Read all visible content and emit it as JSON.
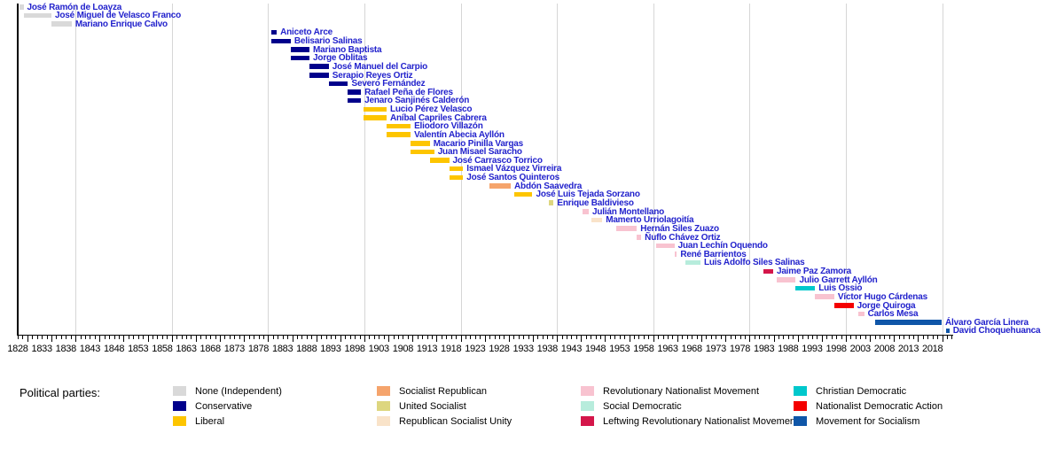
{
  "legend": {
    "title": "Political parties:",
    "columns": [
      [
        "None (Independent)",
        "Conservative",
        "Liberal"
      ],
      [
        "Socialist Republican",
        "United Socialist",
        "Republican Socialist Unity"
      ],
      [
        "Revolutionary Nationalist Movement",
        "Social Democratic",
        "Leftwing Revolutionary Nationalist Movement"
      ],
      [
        "Christian Democratic",
        "Nationalist Democratic Action",
        "Movement for Socialism"
      ]
    ]
  },
  "chart_data": {
    "type": "timeline",
    "title": "",
    "description": "Gantt-style timeline of Bolivian vice presidents colored by political party",
    "name_color": "#2222cc",
    "x_axis": {
      "min": 1828,
      "max": 2022,
      "tick_every": 1,
      "tick_labels": [
        1828,
        1833,
        1838,
        1843,
        1848,
        1853,
        1858,
        1863,
        1868,
        1873,
        1878,
        1883,
        1888,
        1893,
        1898,
        1903,
        1908,
        1913,
        1918,
        1923,
        1928,
        1933,
        1938,
        1943,
        1948,
        1953,
        1958,
        1963,
        1968,
        1973,
        1978,
        1983,
        1988,
        1993,
        1998,
        2003,
        2008,
        2013,
        2018
      ],
      "gridline_years": [
        1840,
        1860,
        1880,
        1900,
        1920,
        1940,
        1960,
        1980,
        2000,
        2020
      ]
    },
    "party_colors": {
      "None (Independent)": "#d9d9d9",
      "Conservative": "#00008b",
      "Liberal": "#fdc500",
      "Socialist Republican": "#f5a46c",
      "United Socialist": "#ddd67f",
      "Republican Socialist Unity": "#f9e3c9",
      "Revolutionary Nationalist Movement": "#f8c3d0",
      "Social Democratic": "#b7ecdc",
      "Leftwing Revolutionary Nationalist Movement": "#d4164a",
      "Christian Democratic": "#00c8cc",
      "Nationalist Democratic Action": "#f40000",
      "Movement for Socialism": "#0f56a8"
    },
    "bars": [
      {
        "name": "José Ramón de Loayza",
        "party": "None (Independent)",
        "start": 1828.3,
        "end": 1829.2
      },
      {
        "name": "José Miguel de Velasco Franco",
        "party": "None (Independent)",
        "start": 1829.2,
        "end": 1835.0
      },
      {
        "name": "Mariano Enrique Calvo",
        "party": "None (Independent)",
        "start": 1835.0,
        "end": 1839.2
      },
      {
        "name": "Aniceto Arce",
        "party": "Conservative",
        "start": 1880.7,
        "end": 1881.8
      },
      {
        "name": "Belisario Salinas",
        "party": "Conservative",
        "start": 1880.7,
        "end": 1884.7
      },
      {
        "name": "Mariano Baptista",
        "party": "Conservative",
        "start": 1884.7,
        "end": 1888.6
      },
      {
        "name": "Jorge Oblitas",
        "party": "Conservative",
        "start": 1884.7,
        "end": 1888.6
      },
      {
        "name": "José Manuel del Carpio",
        "party": "Conservative",
        "start": 1888.6,
        "end": 1892.6
      },
      {
        "name": "Serapio Reyes Ortiz",
        "party": "Conservative",
        "start": 1888.6,
        "end": 1892.6
      },
      {
        "name": "Severo Fernández",
        "party": "Conservative",
        "start": 1892.6,
        "end": 1896.6
      },
      {
        "name": "Rafael Peña de Flores",
        "party": "Conservative",
        "start": 1896.6,
        "end": 1899.3
      },
      {
        "name": "Jenaro Sanjinés Calderón",
        "party": "Conservative",
        "start": 1896.6,
        "end": 1899.3
      },
      {
        "name": "Lucio Pérez Velasco",
        "party": "Liberal",
        "start": 1899.8,
        "end": 1904.6
      },
      {
        "name": "Aníbal Capriles Cabrera",
        "party": "Liberal",
        "start": 1899.8,
        "end": 1904.6
      },
      {
        "name": "Eliodoro Villazón",
        "party": "Liberal",
        "start": 1904.6,
        "end": 1909.6
      },
      {
        "name": "Valentín Abecia Ayllón",
        "party": "Liberal",
        "start": 1904.6,
        "end": 1909.6
      },
      {
        "name": "Macario Pinilla Vargas",
        "party": "Liberal",
        "start": 1909.6,
        "end": 1913.6
      },
      {
        "name": "Juan Misael Saracho",
        "party": "Liberal",
        "start": 1909.6,
        "end": 1914.5
      },
      {
        "name": "José Carrasco Torrico",
        "party": "Liberal",
        "start": 1913.6,
        "end": 1917.6
      },
      {
        "name": "Ismael Vázquez Virreira",
        "party": "Liberal",
        "start": 1917.6,
        "end": 1920.5
      },
      {
        "name": "José Santos Quinteros",
        "party": "Liberal",
        "start": 1917.6,
        "end": 1920.5
      },
      {
        "name": "Abdón Saavedra",
        "party": "Socialist Republican",
        "start": 1926.0,
        "end": 1930.4
      },
      {
        "name": "José Luis Tejada Sorzano",
        "party": "Liberal",
        "start": 1931.2,
        "end": 1934.9
      },
      {
        "name": "Enrique Baldivieso",
        "party": "United Socialist",
        "start": 1938.4,
        "end": 1939.3
      },
      {
        "name": "Julián Montellano",
        "party": "Revolutionary Nationalist Movement",
        "start": 1945.3,
        "end": 1946.6
      },
      {
        "name": "Mamerto Urriolagoitía",
        "party": "Republican Socialist Unity",
        "start": 1947.2,
        "end": 1949.4
      },
      {
        "name": "Hernán Siles Zuazo",
        "party": "Revolutionary Nationalist Movement",
        "start": 1952.3,
        "end": 1956.6
      },
      {
        "name": "Ñuflo Chávez Ortiz",
        "party": "Revolutionary Nationalist Movement",
        "start": 1956.6,
        "end": 1957.5
      },
      {
        "name": "Juan Lechín Oquendo",
        "party": "Revolutionary Nationalist Movement",
        "start": 1960.6,
        "end": 1964.4
      },
      {
        "name": "René Barrientos",
        "party": "Revolutionary Nationalist Movement",
        "start": 1964.4,
        "end": 1964.9
      },
      {
        "name": "Luis Adolfo Siles Salinas",
        "party": "Social Democratic",
        "start": 1966.6,
        "end": 1969.8
      },
      {
        "name": "Jaime Paz Zamora",
        "party": "Leftwing Revolutionary Nationalist Movement",
        "start": 1982.8,
        "end": 1984.9
      },
      {
        "name": "Julio Garrett Ayllón",
        "party": "Revolutionary Nationalist Movement",
        "start": 1985.6,
        "end": 1989.6
      },
      {
        "name": "Luis Ossio",
        "party": "Christian Democratic",
        "start": 1989.6,
        "end": 1993.6
      },
      {
        "name": "Víctor Hugo Cárdenas",
        "party": "Revolutionary Nationalist Movement",
        "start": 1993.6,
        "end": 1997.6
      },
      {
        "name": "Jorge Quiroga",
        "party": "Nationalist Democratic Action",
        "start": 1997.6,
        "end": 2001.6
      },
      {
        "name": "Carlos Mesa",
        "party": "Revolutionary Nationalist Movement",
        "start": 2002.6,
        "end": 2003.8
      },
      {
        "name": "Álvaro García Linera",
        "party": "Movement for Socialism",
        "start": 2006.1,
        "end": 2019.9
      },
      {
        "name": "David Choquehuanca",
        "party": "Movement for Socialism",
        "start": 2020.8,
        "end": 2021.5
      }
    ]
  }
}
